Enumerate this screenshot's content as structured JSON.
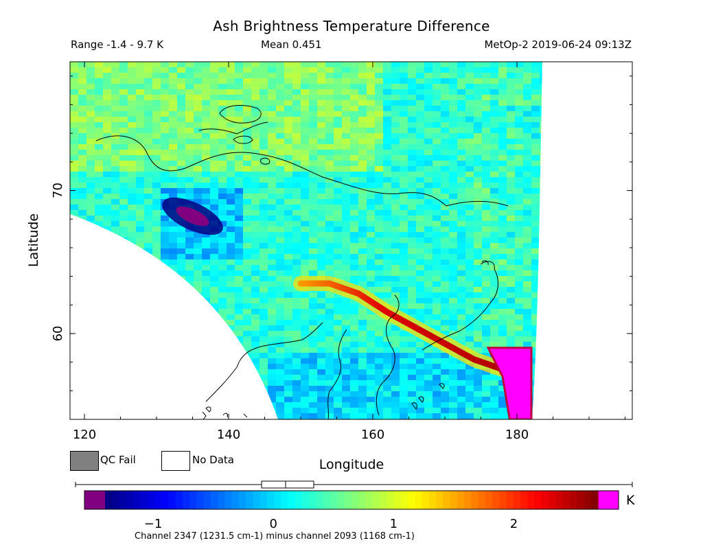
{
  "header": {
    "title": "Ash Brightness Temperature Difference",
    "range": "Range -1.4 - 9.7 K",
    "mean": "Mean 0.451",
    "meta": "MetOp-2 2019-06-24 09:13Z"
  },
  "legend": {
    "qc_fail_label": "QC Fail",
    "no_data_label": "No Data",
    "qc_fail_color": "#808080",
    "no_data_color": "#ffffff"
  },
  "colorbar": {
    "unit": "K",
    "caption": "Channel 2347 (1231.5 cm-1) minus channel 2093 (1168 cm-1)",
    "range": [
      -1.4,
      2.7
    ],
    "ticks": [
      -1,
      0,
      1,
      2
    ],
    "tick_labels": [
      "−1",
      "0",
      "1",
      "2"
    ],
    "under_color": "#800080",
    "over_color": "#ff00ff",
    "colors": [
      "#00007f",
      "#0000ff",
      "#007fff",
      "#00ffff",
      "#7fff7f",
      "#ffff00",
      "#ff7f00",
      "#ff0000",
      "#7f0000"
    ]
  },
  "chart_data": {
    "type": "heatmap",
    "title": "Ash Brightness Temperature Difference",
    "xlabel": "Longitude",
    "ylabel": "Latitude",
    "xlim": [
      118,
      196
    ],
    "ylim": [
      54,
      79
    ],
    "xticks": [
      120,
      140,
      160,
      180
    ],
    "yticks": [
      60,
      70
    ],
    "xtick_labels": [
      "120",
      "140",
      "160",
      "180"
    ],
    "ytick_labels": [
      "60",
      "70"
    ],
    "value_range": [
      -1.4,
      9.7
    ],
    "mean_value": 0.451,
    "features": [
      {
        "description": "ash plume",
        "path": [
          [
            150,
            63.5
          ],
          [
            154,
            63.5
          ],
          [
            158,
            62.8
          ],
          [
            162,
            61.5
          ],
          [
            166,
            60.4
          ],
          [
            170,
            59.3
          ],
          [
            174,
            58.2
          ],
          [
            178,
            57.5
          ]
        ],
        "value": 2.4
      },
      {
        "description": "saturated region",
        "path": [
          [
            176,
            59
          ],
          [
            182,
            59
          ],
          [
            182,
            54
          ],
          [
            179,
            54
          ],
          [
            178,
            57
          ]
        ],
        "value": 9.7
      },
      {
        "description": "low cluster",
        "center": [
          135,
          68.2
        ],
        "value": -1.2
      }
    ]
  }
}
